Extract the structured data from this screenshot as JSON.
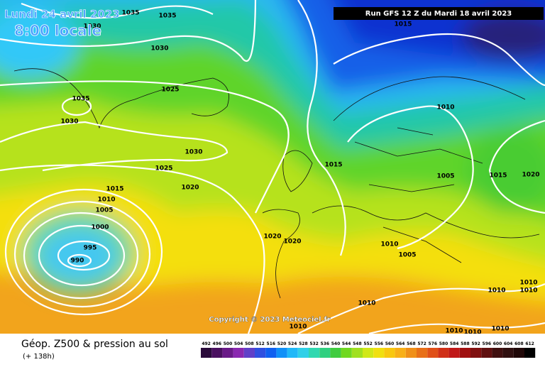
{
  "header": {
    "date": "Lundi 24 avril 2023",
    "time": "8:00 locale",
    "run": "Run GFS 12 Z du Mardi 18 avril 2023"
  },
  "copyright": "Copyright © 2023 Meteociel.fr",
  "footer": {
    "title": "Géop. Z500 & pression au sol",
    "subtitle": "(+ 138h)"
  },
  "isobar_labels": [
    "1035",
    "1035",
    "1030",
    "1030",
    "1025",
    "1035",
    "1030",
    "1030",
    "1025",
    "1020",
    "1015",
    "1010",
    "1005",
    "1000",
    "995",
    "990",
    "1020",
    "1020",
    "1015",
    "1015",
    "1010",
    "1005",
    "1015",
    "1020",
    "1010",
    "1005",
    "1010",
    "1010",
    "1010",
    "1010",
    "1010",
    "1010",
    "1010",
    "1010"
  ],
  "legend_labels": [
    "492",
    "496",
    "500",
    "504",
    "508",
    "512",
    "516",
    "520",
    "524",
    "528",
    "532",
    "536",
    "540",
    "544",
    "548",
    "552",
    "556",
    "560",
    "564",
    "568",
    "572",
    "576",
    "580",
    "584",
    "588",
    "592",
    "596",
    "600",
    "604",
    "608",
    "612"
  ]
}
